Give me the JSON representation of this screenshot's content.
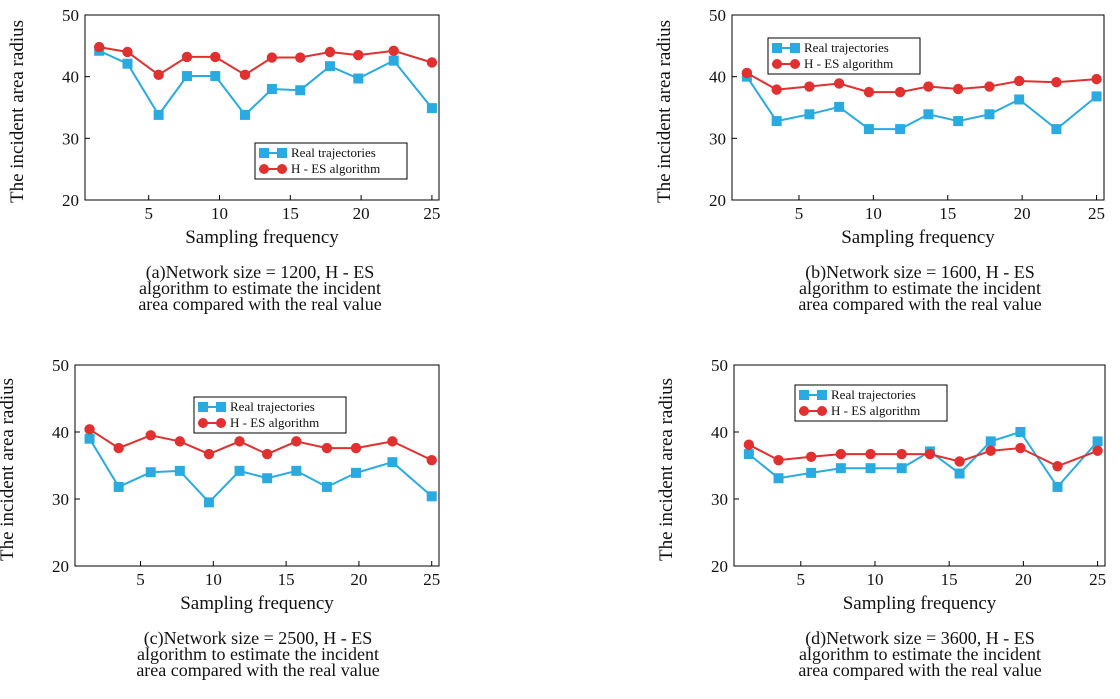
{
  "colors": {
    "real": "#29ABE2",
    "hes": "#E03030",
    "axis": "#000000"
  },
  "chart_data": [
    {
      "type": "line",
      "xlabel": "Sampling frequency",
      "ylabel": "The incident area radius",
      "ylim": [
        20,
        50
      ],
      "xlim": [
        0.5,
        25.5
      ],
      "yticks": [
        "20",
        "30",
        "40",
        "50"
      ],
      "xticks": [
        "5",
        "10",
        "15",
        "20",
        "25"
      ],
      "legend_position": "center-right",
      "caption": [
        "(a)Network size = 1200, H - ES",
        "algorithm to estimate the incident",
        "area compared with the real value"
      ],
      "x": [
        1.5,
        3.5,
        5.7,
        7.7,
        9.7,
        11.8,
        13.7,
        15.7,
        17.8,
        19.8,
        22.3,
        25
      ],
      "series": [
        {
          "name": "Real trajectories",
          "marker": "square",
          "values": [
            44.2,
            42.1,
            33.8,
            40.1,
            40.1,
            33.8,
            38.0,
            37.8,
            41.7,
            39.7,
            42.6,
            34.9
          ]
        },
        {
          "name": "H - ES algorithm",
          "marker": "circle",
          "values": [
            44.8,
            44.0,
            40.3,
            43.2,
            43.2,
            40.3,
            43.1,
            43.1,
            44.0,
            43.5,
            44.2,
            42.3
          ]
        }
      ]
    },
    {
      "type": "line",
      "xlabel": "Sampling frequency",
      "ylabel": "The incident area radius",
      "ylim": [
        20,
        50
      ],
      "xlim": [
        0.5,
        25.5
      ],
      "yticks": [
        "20",
        "30",
        "40",
        "50"
      ],
      "xticks": [
        "5",
        "10",
        "15",
        "20",
        "25"
      ],
      "legend_position": "top-left",
      "caption": [
        "(b)Network size = 1600, H - ES",
        "algorithm to estimate the incident",
        "area compared with the real value"
      ],
      "x": [
        1.5,
        3.5,
        5.7,
        7.7,
        9.7,
        11.8,
        13.7,
        15.7,
        17.8,
        19.8,
        22.3,
        25
      ],
      "series": [
        {
          "name": "Real trajectories",
          "marker": "square",
          "values": [
            40.0,
            32.8,
            33.9,
            35.1,
            31.5,
            31.5,
            33.9,
            32.8,
            33.9,
            36.3,
            31.5,
            36.8
          ]
        },
        {
          "name": "H - ES algorithm",
          "marker": "circle",
          "values": [
            40.6,
            37.9,
            38.4,
            38.9,
            37.5,
            37.5,
            38.4,
            38.0,
            38.4,
            39.3,
            39.1,
            39.6
          ]
        }
      ]
    },
    {
      "type": "line",
      "xlabel": "Sampling frequency",
      "ylabel": "The incident area radius",
      "ylim": [
        20,
        50
      ],
      "xlim": [
        0.5,
        25.5
      ],
      "yticks": [
        "20",
        "30",
        "40",
        "50"
      ],
      "xticks": [
        "5",
        "10",
        "15",
        "20",
        "25"
      ],
      "legend_position": "top-center",
      "caption": [
        "(c)Network size = 2500, H - ES",
        "algorithm to estimate the incident",
        "area compared with the real value"
      ],
      "x": [
        1.5,
        3.5,
        5.7,
        7.7,
        9.7,
        11.8,
        13.7,
        15.7,
        17.8,
        19.8,
        22.3,
        25
      ],
      "series": [
        {
          "name": "Real trajectories",
          "marker": "square",
          "values": [
            39.0,
            31.8,
            34.0,
            34.2,
            29.5,
            34.2,
            33.1,
            34.2,
            31.8,
            33.9,
            35.5,
            30.4
          ]
        },
        {
          "name": "H - ES algorithm",
          "marker": "circle",
          "values": [
            40.4,
            37.6,
            39.5,
            38.6,
            36.7,
            38.6,
            36.7,
            38.6,
            37.6,
            37.6,
            38.6,
            35.8
          ]
        }
      ]
    },
    {
      "type": "line",
      "xlabel": "Sampling frequency",
      "ylabel": "The incident area radius",
      "ylim": [
        20,
        50
      ],
      "xlim": [
        0.5,
        25.5
      ],
      "yticks": [
        "20",
        "30",
        "40",
        "50"
      ],
      "xticks": [
        "5",
        "10",
        "15",
        "20",
        "25"
      ],
      "legend_position": "top-left",
      "caption": [
        "(d)Network size = 3600, H - ES",
        "algorithm to estimate the incident",
        "area compared with the real value"
      ],
      "x": [
        1.5,
        3.5,
        5.7,
        7.7,
        9.7,
        11.8,
        13.7,
        15.7,
        17.8,
        19.8,
        22.3,
        25
      ],
      "series": [
        {
          "name": "Real trajectories",
          "marker": "square",
          "values": [
            36.7,
            33.1,
            33.9,
            34.6,
            34.6,
            34.6,
            37.1,
            33.8,
            38.6,
            40.0,
            31.8,
            38.6
          ]
        },
        {
          "name": "H - ES algorithm",
          "marker": "circle",
          "values": [
            38.1,
            35.8,
            36.3,
            36.7,
            36.7,
            36.7,
            36.7,
            35.6,
            37.2,
            37.6,
            34.9,
            37.2
          ]
        }
      ]
    }
  ]
}
